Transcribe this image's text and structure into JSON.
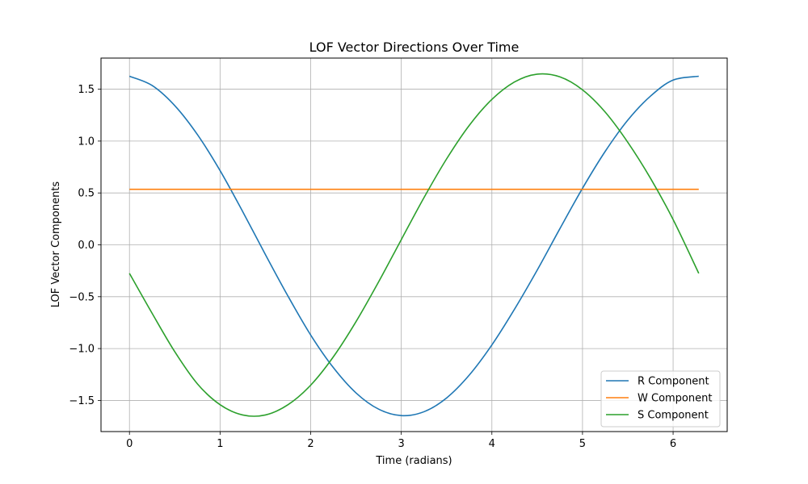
{
  "chart_data": {
    "type": "line",
    "title": "LOF Vector Directions Over Time",
    "xlabel": "Time (radians)",
    "ylabel": "LOF Vector Components",
    "xlim": [
      -0.314,
      6.597
    ],
    "ylim": [
      -1.8,
      1.8
    ],
    "xticks": [
      0,
      1,
      2,
      3,
      4,
      5,
      6
    ],
    "yticks": [
      -1.5,
      -1.0,
      -0.5,
      0.0,
      0.5,
      1.0,
      1.5
    ],
    "xtick_labels": [
      "0",
      "1",
      "2",
      "3",
      "4",
      "5",
      "6"
    ],
    "ytick_labels": [
      "−1.5",
      "−1.0",
      "−0.5",
      "0.0",
      "0.5",
      "1.0",
      "1.5"
    ],
    "grid": true,
    "legend_position": "lower-right",
    "x": [
      0,
      0.25,
      0.5,
      0.75,
      1.0,
      1.25,
      1.5,
      1.75,
      2.0,
      2.25,
      2.5,
      2.75,
      3.0,
      3.25,
      3.5,
      3.75,
      4.0,
      4.25,
      4.5,
      4.75,
      5.0,
      5.25,
      5.5,
      5.75,
      6.0,
      6.283
    ],
    "series": [
      {
        "name": "R Component",
        "color": "#1f77b4",
        "values": [
          1.625,
          1.536,
          1.342,
          1.063,
          0.716,
          0.32,
          -0.093,
          -0.495,
          -0.869,
          -1.183,
          -1.427,
          -1.584,
          -1.646,
          -1.609,
          -1.476,
          -1.256,
          -0.965,
          -0.62,
          -0.244,
          0.155,
          0.545,
          0.9,
          1.202,
          1.433,
          1.588,
          1.625
        ]
      },
      {
        "name": "W Component",
        "color": "#ff7f0e",
        "values": [
          0.535,
          0.535,
          0.535,
          0.535,
          0.535,
          0.535,
          0.535,
          0.535,
          0.535,
          0.535,
          0.535,
          0.535,
          0.535,
          0.535,
          0.535,
          0.535,
          0.535,
          0.535,
          0.535,
          0.535,
          0.535,
          0.535,
          0.535,
          0.535,
          0.535,
          0.535
        ]
      },
      {
        "name": "S Component",
        "color": "#2ca02c",
        "values": [
          -0.275,
          -0.66,
          -1.03,
          -1.34,
          -1.541,
          -1.64,
          -1.64,
          -1.541,
          -1.353,
          -1.08,
          -0.741,
          -0.357,
          0.05,
          0.454,
          0.828,
          1.151,
          1.402,
          1.57,
          1.645,
          1.619,
          1.494,
          1.28,
          0.988,
          0.642,
          0.244,
          -0.275
        ]
      }
    ]
  }
}
